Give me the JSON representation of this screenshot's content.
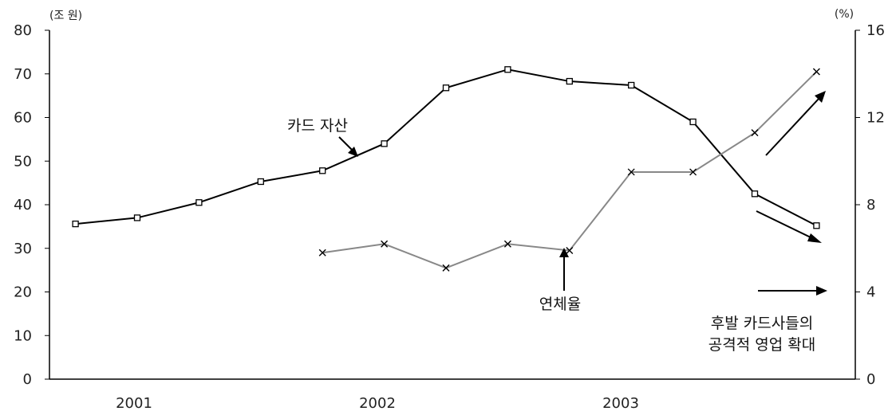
{
  "chart_data": {
    "type": "line",
    "left_axis_unit": "(조 원)",
    "right_axis_unit": "(%)",
    "left_ylim": [
      0,
      80
    ],
    "right_ylim": [
      0,
      16
    ],
    "left_ticks": [
      "0",
      "10",
      "20",
      "30",
      "40",
      "50",
      "60",
      "70",
      "80"
    ],
    "right_ticks": [
      "0",
      "4",
      "8",
      "12",
      "16"
    ],
    "x_labels": [
      "2001",
      "2002",
      "2003"
    ],
    "grid": false,
    "series": [
      {
        "name": "카드 자산",
        "axis": "left",
        "marker": "square",
        "color": "#000000",
        "x": [
          "2000Q4",
          "2001Q1",
          "2001Q2",
          "2001Q3",
          "2001Q4",
          "2002Q1",
          "2002Q2",
          "2002Q3",
          "2002Q4",
          "2003Q1",
          "2003Q2",
          "2003Q3",
          "2003Q4"
        ],
        "values": [
          35.6,
          37.0,
          40.5,
          45.3,
          47.8,
          54.0,
          66.8,
          71.0,
          68.3,
          67.4,
          59.0,
          42.5,
          35.2
        ]
      },
      {
        "name": "연체율",
        "axis": "right",
        "marker": "x",
        "color": "#888888",
        "x": [
          "2001Q4",
          "2002Q1",
          "2002Q2",
          "2002Q3",
          "2002Q4",
          "2003Q1",
          "2003Q2",
          "2003Q3",
          "2003Q4"
        ],
        "values": [
          5.8,
          6.2,
          5.1,
          6.2,
          5.9,
          9.5,
          9.5,
          11.3,
          14.1
        ]
      }
    ],
    "annotations": [
      {
        "text": "카드 자산"
      },
      {
        "text": "연체율"
      },
      {
        "text": "후발 카드사들의"
      },
      {
        "text": "공격적 영업 확대"
      }
    ]
  }
}
